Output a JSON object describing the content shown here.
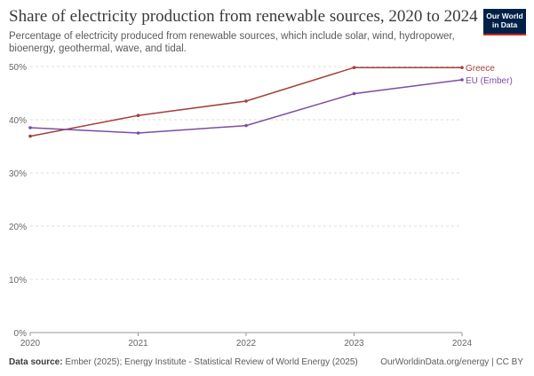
{
  "header": {
    "title": "Share of electricity production from renewable sources, 2020 to 2024",
    "subtitle": "Percentage of electricity produced from renewable sources, which include solar, wind, hydropower, bioenergy, geothermal, wave, and tidal.",
    "logo_line1": "Our World",
    "logo_line2": "in Data"
  },
  "footer": {
    "source_label": "Data source:",
    "source_text": "Ember (2025); Energy Institute - Statistical Review of World Energy (2025)",
    "credit": "OurWorldinData.org/energy | CC BY"
  },
  "chart_data": {
    "type": "line",
    "title": "Share of electricity production from renewable sources, 2020 to 2024",
    "x": [
      2020,
      2021,
      2022,
      2023,
      2024
    ],
    "x_tick_labels": [
      "2020",
      "2021",
      "2022",
      "2023",
      "2024"
    ],
    "ylim": [
      0,
      50
    ],
    "y_ticks": [
      0,
      10,
      20,
      30,
      40,
      50
    ],
    "y_tick_labels": [
      "0%",
      "10%",
      "20%",
      "30%",
      "40%",
      "50%"
    ],
    "grid": "horizontal dashed",
    "legend": "inline labels at right end of lines",
    "series": [
      {
        "name": "Greece",
        "color": "#a2403c",
        "values": [
          36.9,
          40.8,
          43.5,
          49.8,
          49.8
        ]
      },
      {
        "name": "EU (Ember)",
        "color": "#7a4ea0",
        "values": [
          38.5,
          37.5,
          38.9,
          44.9,
          47.5
        ]
      }
    ]
  }
}
